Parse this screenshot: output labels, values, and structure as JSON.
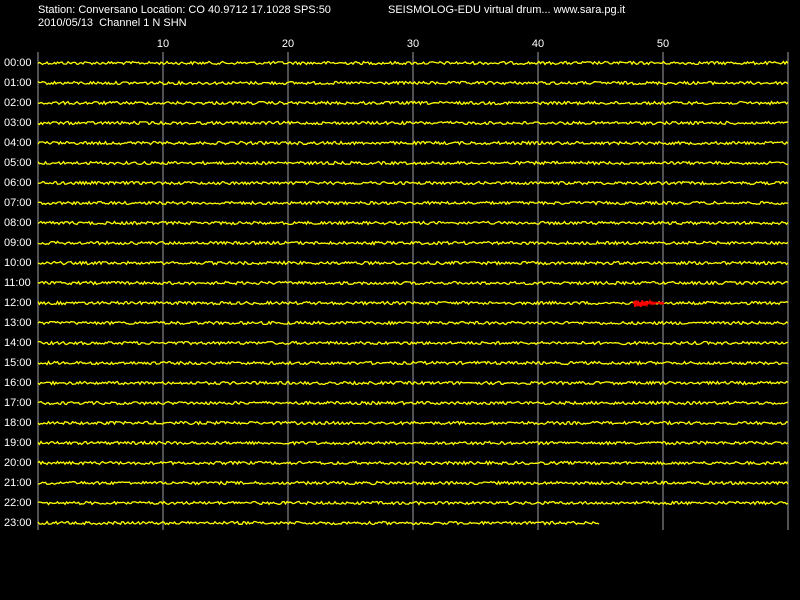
{
  "header": {
    "station": "Station: Conversano Location: CO 40.9712 17.1028 SPS:50",
    "program": "SEISMOLOG-EDU virtual drum... www.sara.pg.it",
    "date_channel": "2010/05/13  Channel 1 N SHN"
  },
  "drum": {
    "minute_ticks": [
      10,
      20,
      30,
      40,
      50
    ],
    "minute_range": [
      0,
      60
    ],
    "hours": [
      "00:00",
      "01:00",
      "02:00",
      "03:00",
      "04:00",
      "05:00",
      "06:00",
      "07:00",
      "08:00",
      "09:00",
      "10:00",
      "11:00",
      "12:00",
      "13:00",
      "14:00",
      "15:00",
      "16:00",
      "17:00",
      "18:00",
      "19:00",
      "20:00",
      "21:00",
      "22:00",
      "23:00"
    ],
    "trace_color": "#ffff00",
    "event_color": "#ff0000"
  }
}
